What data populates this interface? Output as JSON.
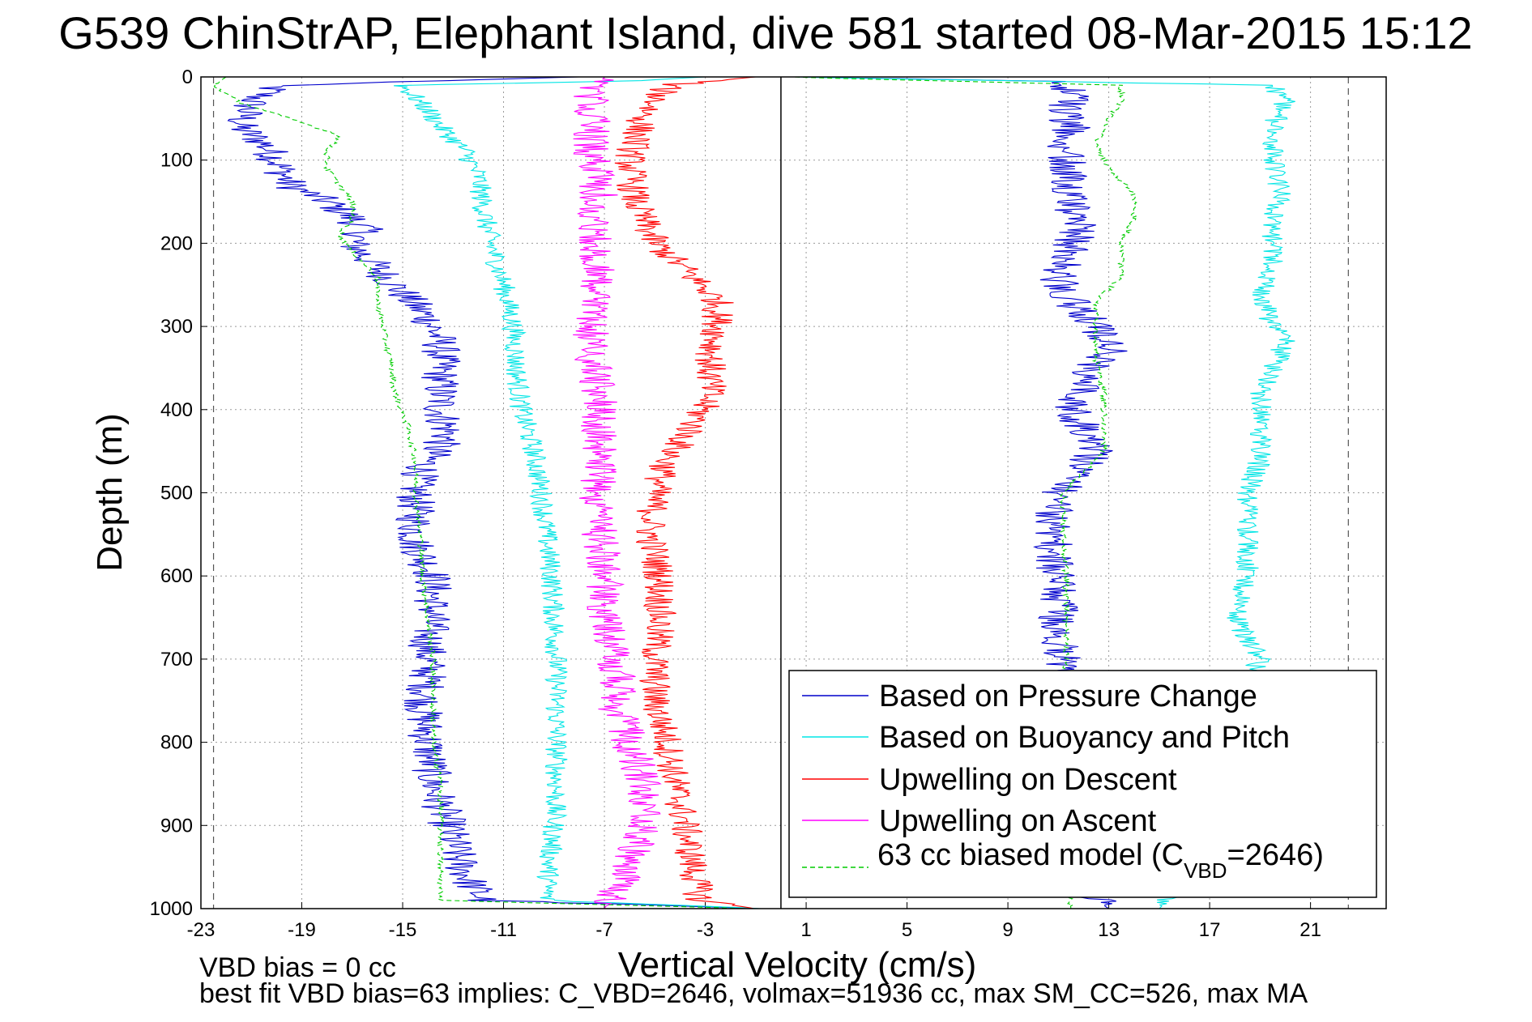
{
  "chart_data": {
    "type": "line",
    "title": "G539 ChinStrAP, Elephant Island, dive 581 started 08-Mar-2015 15:12",
    "xlabel": "Vertical Velocity (cm/s)",
    "ylabel": "Depth (m)",
    "xlim": [
      -23,
      24
    ],
    "ylim": [
      1000,
      0
    ],
    "y_reversed": true,
    "grid": true,
    "legend_position": "bottom-right",
    "xticks": [
      "-23",
      "-19",
      "-15",
      "-11",
      "-7",
      "-3",
      "1",
      "5",
      "9",
      "13",
      "17",
      "21"
    ],
    "yticks": [
      "0",
      "100",
      "200",
      "300",
      "400",
      "500",
      "600",
      "700",
      "800",
      "900",
      "1000"
    ],
    "reference_lines": [
      {
        "kind": "solid",
        "x": 0,
        "color": "#000000"
      },
      {
        "kind": "dashed",
        "x": -22.5,
        "color": "#555555"
      },
      {
        "kind": "dashed",
        "x": 22.5,
        "color": "#555555"
      }
    ],
    "series": [
      {
        "name": "Based on Pressure Change",
        "color": "#0000cc",
        "style": "solid",
        "noise": 0.8,
        "descent": [
          [
            0,
            -8
          ],
          [
            10,
            -20
          ],
          [
            30,
            -21
          ],
          [
            60,
            -21.5
          ],
          [
            80,
            -20.5
          ],
          [
            100,
            -20
          ],
          [
            130,
            -19.5
          ],
          [
            150,
            -18
          ],
          [
            170,
            -17
          ],
          [
            185,
            -16.5
          ],
          [
            200,
            -17
          ],
          [
            230,
            -16
          ],
          [
            260,
            -15
          ],
          [
            290,
            -14
          ],
          [
            320,
            -13.5
          ],
          [
            360,
            -13.5
          ],
          [
            400,
            -13.5
          ],
          [
            430,
            -13.2
          ],
          [
            460,
            -14
          ],
          [
            490,
            -14.5
          ],
          [
            520,
            -14.5
          ],
          [
            560,
            -14.5
          ],
          [
            600,
            -13.8
          ],
          [
            640,
            -13.8
          ],
          [
            680,
            -14
          ],
          [
            720,
            -14
          ],
          [
            760,
            -14.2
          ],
          [
            800,
            -14
          ],
          [
            850,
            -13.8
          ],
          [
            900,
            -13.2
          ],
          [
            940,
            -12.8
          ],
          [
            970,
            -12.3
          ],
          [
            990,
            -11.8
          ],
          [
            1000,
            -0.5
          ]
        ],
        "ascent": [
          [
            1000,
            13
          ],
          [
            980,
            12
          ],
          [
            950,
            11.5
          ],
          [
            900,
            11.3
          ],
          [
            850,
            11.5
          ],
          [
            800,
            11.5
          ],
          [
            760,
            11.5
          ],
          [
            720,
            11.5
          ],
          [
            700,
            11.2
          ],
          [
            660,
            11
          ],
          [
            620,
            11
          ],
          [
            580,
            10.8
          ],
          [
            540,
            10.8
          ],
          [
            500,
            11
          ],
          [
            470,
            12
          ],
          [
            450,
            12.5
          ],
          [
            420,
            12
          ],
          [
            400,
            11.5
          ],
          [
            380,
            11.8
          ],
          [
            360,
            12
          ],
          [
            330,
            13
          ],
          [
            300,
            12.5
          ],
          [
            270,
            11.5
          ],
          [
            240,
            11
          ],
          [
            210,
            11.5
          ],
          [
            180,
            11.8
          ],
          [
            150,
            11.5
          ],
          [
            120,
            11.5
          ],
          [
            90,
            11.3
          ],
          [
            60,
            11.5
          ],
          [
            40,
            11.2
          ],
          [
            20,
            11.5
          ],
          [
            5,
            11
          ],
          [
            0,
            0
          ]
        ]
      },
      {
        "name": "Based on Buoyancy and Pitch",
        "color": "#00e5e5",
        "style": "solid",
        "noise": 0.45,
        "descent": [
          [
            0,
            -3
          ],
          [
            5,
            -6
          ],
          [
            10,
            -15
          ],
          [
            40,
            -14
          ],
          [
            60,
            -13.5
          ],
          [
            90,
            -12.5
          ],
          [
            120,
            -12
          ],
          [
            160,
            -11.8
          ],
          [
            200,
            -11.5
          ],
          [
            250,
            -11
          ],
          [
            300,
            -10.6
          ],
          [
            350,
            -10.5
          ],
          [
            400,
            -10.3
          ],
          [
            450,
            -9.8
          ],
          [
            500,
            -9.5
          ],
          [
            550,
            -9.3
          ],
          [
            600,
            -9.1
          ],
          [
            650,
            -9
          ],
          [
            700,
            -8.9
          ],
          [
            750,
            -8.9
          ],
          [
            800,
            -8.9
          ],
          [
            850,
            -8.9
          ],
          [
            900,
            -9
          ],
          [
            950,
            -9.2
          ],
          [
            990,
            -9.3
          ],
          [
            1000,
            -0.5
          ]
        ],
        "ascent": [
          [
            1000,
            15
          ],
          [
            970,
            16
          ],
          [
            950,
            17.5
          ],
          [
            900,
            18
          ],
          [
            850,
            18
          ],
          [
            800,
            18
          ],
          [
            760,
            18
          ],
          [
            720,
            18.5
          ],
          [
            700,
            19
          ],
          [
            650,
            18
          ],
          [
            600,
            18.5
          ],
          [
            550,
            18.5
          ],
          [
            500,
            18.5
          ],
          [
            460,
            19
          ],
          [
            420,
            19
          ],
          [
            380,
            19
          ],
          [
            350,
            19.5
          ],
          [
            320,
            20
          ],
          [
            300,
            19.5
          ],
          [
            260,
            19
          ],
          [
            230,
            19.5
          ],
          [
            200,
            19.5
          ],
          [
            170,
            19.5
          ],
          [
            140,
            19.8
          ],
          [
            100,
            19.5
          ],
          [
            60,
            19.5
          ],
          [
            30,
            20
          ],
          [
            10,
            19.5
          ],
          [
            0,
            0
          ]
        ]
      },
      {
        "name": "Upwelling on Descent",
        "color": "#ff0000",
        "style": "solid",
        "noise": 0.65,
        "descent": [
          [
            0,
            -1
          ],
          [
            10,
            -4.5
          ],
          [
            50,
            -5.5
          ],
          [
            100,
            -6
          ],
          [
            150,
            -5.8
          ],
          [
            200,
            -5
          ],
          [
            240,
            -3.5
          ],
          [
            270,
            -2.5
          ],
          [
            300,
            -2.5
          ],
          [
            340,
            -2.8
          ],
          [
            380,
            -2.8
          ],
          [
            420,
            -3.5
          ],
          [
            460,
            -4.5
          ],
          [
            500,
            -5
          ],
          [
            550,
            -5.2
          ],
          [
            600,
            -4.8
          ],
          [
            650,
            -4.8
          ],
          [
            700,
            -5
          ],
          [
            750,
            -5
          ],
          [
            800,
            -4.5
          ],
          [
            850,
            -4.2
          ],
          [
            900,
            -3.8
          ],
          [
            950,
            -3.5
          ],
          [
            990,
            -3.2
          ],
          [
            1000,
            -1
          ]
        ]
      },
      {
        "name": "Upwelling on Ascent",
        "color": "#ff00ff",
        "style": "solid",
        "noise": 0.75,
        "descent": [
          [
            1000,
            -7
          ],
          [
            950,
            -6
          ],
          [
            900,
            -5.5
          ],
          [
            850,
            -5.5
          ],
          [
            800,
            -6
          ],
          [
            760,
            -6.5
          ],
          [
            720,
            -6.5
          ],
          [
            680,
            -6.8
          ],
          [
            640,
            -7
          ],
          [
            600,
            -7
          ],
          [
            550,
            -7.2
          ],
          [
            500,
            -7.3
          ],
          [
            460,
            -7.2
          ],
          [
            420,
            -7.2
          ],
          [
            380,
            -7.2
          ],
          [
            340,
            -7.5
          ],
          [
            300,
            -7.5
          ],
          [
            260,
            -7.2
          ],
          [
            220,
            -7.3
          ],
          [
            180,
            -7.5
          ],
          [
            140,
            -7.2
          ],
          [
            100,
            -7.5
          ],
          [
            60,
            -7.5
          ],
          [
            20,
            -7.5
          ],
          [
            0,
            -7
          ]
        ]
      },
      {
        "name": "63 cc biased model (C_VBD=2646)",
        "color": "#00cc00",
        "style": "dashed",
        "noise": 0.12,
        "descent": [
          [
            0,
            -22
          ],
          [
            10,
            -22.5
          ],
          [
            30,
            -21.5
          ],
          [
            50,
            -19.5
          ],
          [
            70,
            -17.5
          ],
          [
            90,
            -18
          ],
          [
            110,
            -18
          ],
          [
            130,
            -17.5
          ],
          [
            150,
            -17
          ],
          [
            170,
            -17
          ],
          [
            190,
            -17.5
          ],
          [
            210,
            -17
          ],
          [
            240,
            -16
          ],
          [
            270,
            -16
          ],
          [
            300,
            -15.8
          ],
          [
            340,
            -15.5
          ],
          [
            380,
            -15.3
          ],
          [
            420,
            -14.8
          ],
          [
            460,
            -14.5
          ],
          [
            500,
            -14.5
          ],
          [
            550,
            -14.3
          ],
          [
            600,
            -14.2
          ],
          [
            650,
            -14
          ],
          [
            700,
            -13.8
          ],
          [
            750,
            -13.8
          ],
          [
            800,
            -13.8
          ],
          [
            850,
            -13.5
          ],
          [
            900,
            -13.5
          ],
          [
            950,
            -13.5
          ],
          [
            990,
            -13.5
          ],
          [
            1000,
            -1
          ]
        ],
        "ascent": [
          [
            1000,
            11.5
          ],
          [
            950,
            11.3
          ],
          [
            900,
            11.3
          ],
          [
            850,
            11.3
          ],
          [
            800,
            11.3
          ],
          [
            750,
            11.3
          ],
          [
            700,
            11.3
          ],
          [
            650,
            11.3
          ],
          [
            600,
            11.3
          ],
          [
            550,
            11.2
          ],
          [
            500,
            11.2
          ],
          [
            450,
            12.8
          ],
          [
            420,
            12.8
          ],
          [
            380,
            12.8
          ],
          [
            340,
            12.5
          ],
          [
            300,
            12.5
          ],
          [
            270,
            12.5
          ],
          [
            240,
            13.5
          ],
          [
            200,
            13.5
          ],
          [
            170,
            14
          ],
          [
            140,
            14
          ],
          [
            110,
            13
          ],
          [
            80,
            12.5
          ],
          [
            50,
            13
          ],
          [
            30,
            13.5
          ],
          [
            10,
            13.5
          ],
          [
            0,
            0
          ]
        ]
      }
    ],
    "legend": [
      {
        "label": "Based on Pressure Change",
        "color": "#0000cc",
        "style": "solid"
      },
      {
        "label": "Based on Buoyancy and Pitch",
        "color": "#00e5e5",
        "style": "solid"
      },
      {
        "label": "Upwelling on Descent",
        "color": "#ff0000",
        "style": "solid"
      },
      {
        "label": "Upwelling on Ascent",
        "color": "#ff00ff",
        "style": "solid"
      },
      {
        "label_main": "63 cc biased model (C",
        "label_sub": "VBD",
        "label_tail": "=2646)",
        "color": "#00cc00",
        "style": "dashed"
      }
    ],
    "annotations": {
      "bias_line": "VBD bias = 0 cc",
      "fit_line": "best fit VBD bias=63 implies: C_VBD=2646, volmax=51936 cc, max SM_CC=526, max MA"
    }
  }
}
